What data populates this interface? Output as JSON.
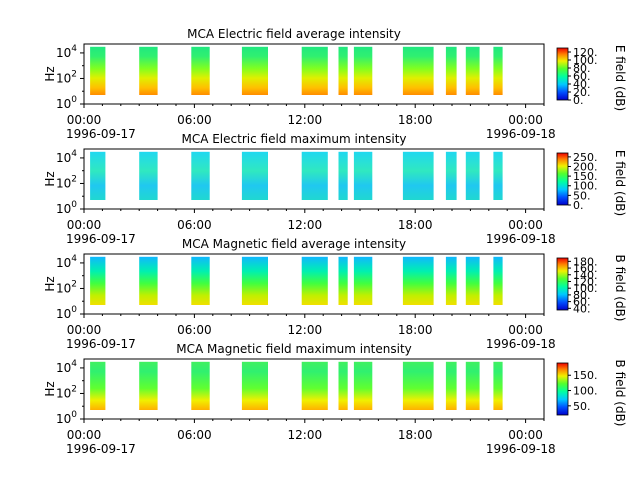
{
  "chart_data": [
    {
      "type": "heatmap",
      "title": "MCA  Electric field average intensity",
      "ylabel": "Hz",
      "colorbar_label": "E field (dB)",
      "x_ticks": [
        "00:00",
        "06:00",
        "12:00",
        "18:00",
        "00:00"
      ],
      "x_date_start": "1996-09-17",
      "x_date_end": "1996-09-18",
      "xlim": [
        "1996-09-17 00:00",
        "1996-09-18 01:00"
      ],
      "y_ticks": [
        "10^0",
        "10^2",
        "10^4"
      ],
      "ylim": [
        1,
        50000
      ],
      "y_scale": "log",
      "colorbar_ticks": [
        "0.",
        "20.",
        "40.",
        "60.",
        "80.",
        "100.",
        "120."
      ],
      "color_range": [
        0,
        130
      ],
      "data_segments_utc": [
        [
          "00:20",
          "01:10"
        ],
        [
          "03:00",
          "04:00"
        ],
        [
          "05:50",
          "06:50"
        ],
        [
          "08:35",
          "10:00"
        ],
        [
          "11:50",
          "13:15"
        ],
        [
          "13:50",
          "14:20"
        ],
        [
          "14:40",
          "15:40"
        ],
        [
          "17:20",
          "19:00"
        ],
        [
          "19:40",
          "20:15"
        ],
        [
          "20:45",
          "21:30"
        ],
        [
          "22:15",
          "22:45"
        ]
      ],
      "intensity_profile": "high (orange/red) near 10 Hz, falling to ~40 dB (green) above 10^3 Hz"
    },
    {
      "type": "heatmap",
      "title": "MCA  Electric field maximum intensity",
      "ylabel": "Hz",
      "colorbar_label": "E field (dB)",
      "x_ticks": [
        "00:00",
        "06:00",
        "12:00",
        "18:00",
        "00:00"
      ],
      "x_date_start": "1996-09-17",
      "x_date_end": "1996-09-18",
      "xlim": [
        "1996-09-17 00:00",
        "1996-09-18 01:00"
      ],
      "y_ticks": [
        "10^0",
        "10^2",
        "10^4"
      ],
      "ylim": [
        1,
        50000
      ],
      "y_scale": "log",
      "colorbar_ticks": [
        "0.",
        "50.",
        "100.",
        "150.",
        "200.",
        "250."
      ],
      "color_range": [
        0,
        270
      ],
      "data_segments_utc": [
        [
          "00:20",
          "01:10"
        ],
        [
          "03:00",
          "04:00"
        ],
        [
          "05:50",
          "06:50"
        ],
        [
          "08:35",
          "10:00"
        ],
        [
          "11:50",
          "13:15"
        ],
        [
          "13:50",
          "14:20"
        ],
        [
          "14:40",
          "15:40"
        ],
        [
          "17:20",
          "19:00"
        ],
        [
          "19:40",
          "20:15"
        ],
        [
          "20:45",
          "21:30"
        ],
        [
          "22:15",
          "22:45"
        ]
      ],
      "intensity_profile": "mostly cyan/green (~100 dB) at all frequencies"
    },
    {
      "type": "heatmap",
      "title": "MCA  Magnetic field average intensity",
      "ylabel": "Hz",
      "colorbar_label": "B field (dB)",
      "x_ticks": [
        "00:00",
        "06:00",
        "12:00",
        "18:00",
        "00:00"
      ],
      "x_date_start": "1996-09-17",
      "x_date_end": "1996-09-18",
      "xlim": [
        "1996-09-17 00:00",
        "1996-09-18 01:00"
      ],
      "y_ticks": [
        "10^0",
        "10^2",
        "10^4"
      ],
      "ylim": [
        1,
        50000
      ],
      "y_scale": "log",
      "colorbar_ticks": [
        "40.",
        "60.",
        "80.",
        "100.",
        "120.",
        "140.",
        "160.",
        "180."
      ],
      "color_range": [
        35,
        190
      ],
      "data_segments_utc": [
        [
          "00:20",
          "01:10"
        ],
        [
          "03:00",
          "04:00"
        ],
        [
          "05:50",
          "06:50"
        ],
        [
          "08:35",
          "10:00"
        ],
        [
          "11:50",
          "13:15"
        ],
        [
          "13:50",
          "14:20"
        ],
        [
          "14:40",
          "15:40"
        ],
        [
          "17:20",
          "19:00"
        ],
        [
          "19:40",
          "20:15"
        ],
        [
          "20:45",
          "21:30"
        ],
        [
          "22:15",
          "22:45"
        ]
      ],
      "intensity_profile": "yellow (~150 dB) near 10 Hz, green mid, cyan/blue (~80 dB) above 10^3 Hz"
    },
    {
      "type": "heatmap",
      "title": "MCA  Magnetic field maximum intensity",
      "ylabel": "Hz",
      "colorbar_label": "B field (dB)",
      "x_ticks": [
        "00:00",
        "06:00",
        "12:00",
        "18:00",
        "00:00"
      ],
      "x_date_start": "1996-09-17",
      "x_date_end": "1996-09-18",
      "xlim": [
        "1996-09-17 00:00",
        "1996-09-18 01:00"
      ],
      "y_ticks": [
        "10^0",
        "10^2",
        "10^4"
      ],
      "ylim": [
        1,
        50000
      ],
      "y_scale": "log",
      "colorbar_ticks": [
        "50.",
        "100.",
        "150."
      ],
      "color_range": [
        20,
        190
      ],
      "data_segments_utc": [
        [
          "00:20",
          "01:10"
        ],
        [
          "03:00",
          "04:00"
        ],
        [
          "05:50",
          "06:50"
        ],
        [
          "08:35",
          "10:00"
        ],
        [
          "11:50",
          "13:15"
        ],
        [
          "13:50",
          "14:20"
        ],
        [
          "14:40",
          "15:40"
        ],
        [
          "17:20",
          "19:00"
        ],
        [
          "19:40",
          "20:15"
        ],
        [
          "20:45",
          "21:30"
        ],
        [
          "22:15",
          "22:45"
        ]
      ],
      "intensity_profile": "yellow/orange (~140 dB) near 10 Hz, green (~100 dB) at higher frequencies"
    }
  ]
}
